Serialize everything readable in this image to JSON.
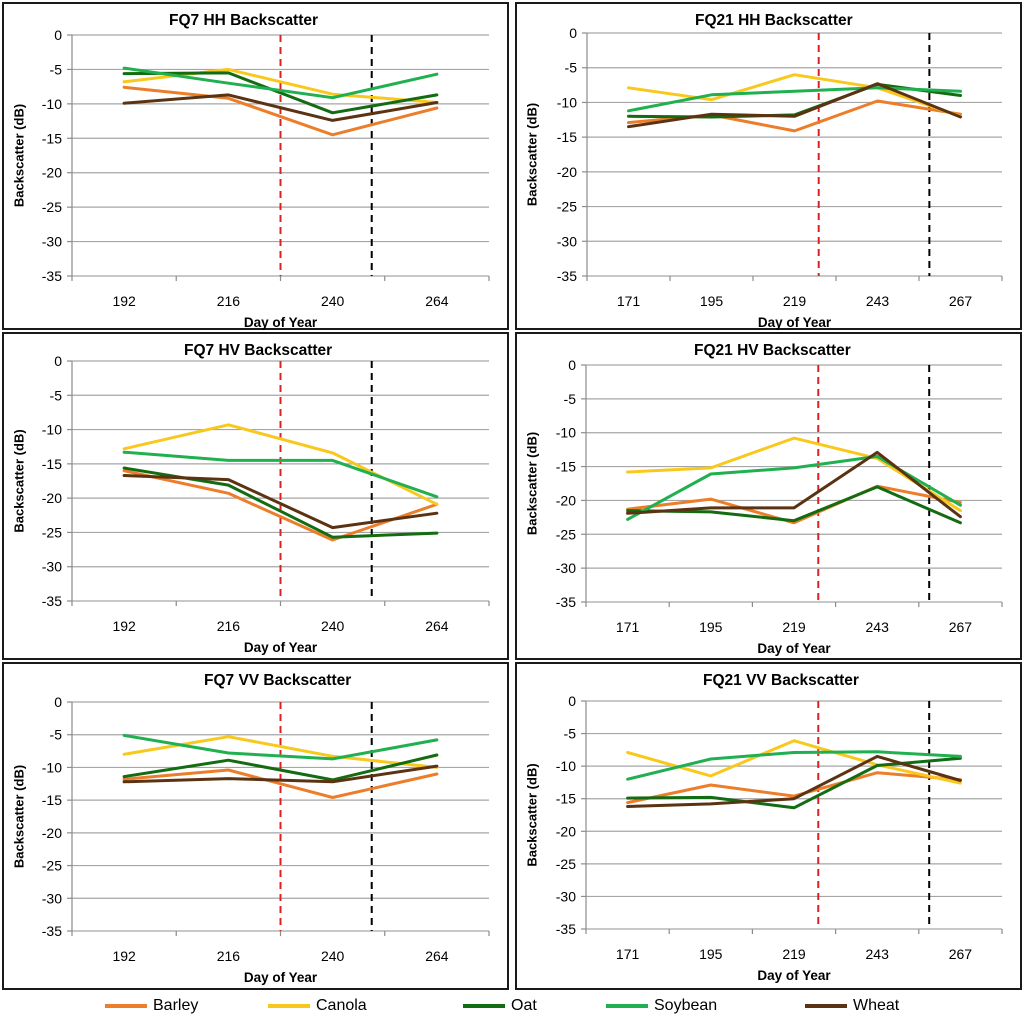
{
  "chart_data": [
    {
      "type": "line",
      "title": "FQ7 HH Backscatter",
      "xlabel": "Day of Year",
      "ylabel": "Backscatter (dB)",
      "x": [
        192,
        216,
        240,
        264
      ],
      "ylim": [
        -35,
        0
      ],
      "yticks": [
        0,
        -5,
        -10,
        -15,
        -20,
        -25,
        -30,
        -35
      ],
      "vlines": [
        {
          "x": 228,
          "color": "#e02020"
        },
        {
          "x": 249,
          "color": "#000000"
        }
      ],
      "series": [
        {
          "name": "Barley",
          "values": [
            -7.6,
            -9.2,
            -14.5,
            -10.6
          ]
        },
        {
          "name": "Canola",
          "values": [
            -6.8,
            -5.0,
            -8.6,
            -9.8
          ]
        },
        {
          "name": "Oat",
          "values": [
            -5.6,
            -5.5,
            -11.3,
            -8.7
          ]
        },
        {
          "name": "Soybean",
          "values": [
            -4.8,
            -7.0,
            -9.1,
            -5.7
          ]
        },
        {
          "name": "Wheat",
          "values": [
            -9.9,
            -8.7,
            -12.4,
            -9.8
          ]
        }
      ]
    },
    {
      "type": "line",
      "title": "FQ21 HH Backscatter",
      "xlabel": "Day of Year",
      "ylabel": "Backscatter (dB)",
      "x": [
        171,
        195,
        219,
        243,
        267
      ],
      "ylim": [
        -35,
        0
      ],
      "yticks": [
        0,
        -5,
        -10,
        -15,
        -20,
        -25,
        -30,
        -35
      ],
      "vlines": [
        {
          "x": 226,
          "color": "#e02020"
        },
        {
          "x": 258,
          "color": "#000000"
        }
      ],
      "series": [
        {
          "name": "Barley",
          "values": [
            -12.9,
            -11.8,
            -14.1,
            -9.8,
            -11.7
          ]
        },
        {
          "name": "Canola",
          "values": [
            -7.9,
            -9.6,
            -6.0,
            -7.9,
            -12.0
          ]
        },
        {
          "name": "Oat",
          "values": [
            -12.0,
            -12.1,
            -11.8,
            -7.4,
            -9.0
          ]
        },
        {
          "name": "Soybean",
          "values": [
            -11.2,
            -8.9,
            -8.4,
            -7.9,
            -8.4
          ]
        },
        {
          "name": "Wheat",
          "values": [
            -13.5,
            -11.7,
            -12.0,
            -7.3,
            -12.1
          ]
        }
      ]
    },
    {
      "type": "line",
      "title": "FQ7 HV Backscatter",
      "xlabel": "Day of Year",
      "ylabel": "Backscatter (dB)",
      "x": [
        192,
        216,
        240,
        264
      ],
      "ylim": [
        -35,
        0
      ],
      "yticks": [
        0,
        -5,
        -10,
        -15,
        -20,
        -25,
        -30,
        -35
      ],
      "vlines": [
        {
          "x": 228,
          "color": "#e02020"
        },
        {
          "x": 249,
          "color": "#000000"
        }
      ],
      "series": [
        {
          "name": "Barley",
          "values": [
            -16.0,
            -19.3,
            -26.1,
            -20.9
          ]
        },
        {
          "name": "Canola",
          "values": [
            -12.8,
            -9.3,
            -13.4,
            -20.9
          ]
        },
        {
          "name": "Oat",
          "values": [
            -15.6,
            -18.1,
            -25.7,
            -25.1
          ]
        },
        {
          "name": "Soybean",
          "values": [
            -13.3,
            -14.5,
            -14.5,
            -19.8
          ]
        },
        {
          "name": "Wheat",
          "values": [
            -16.7,
            -17.3,
            -24.3,
            -22.2
          ]
        }
      ]
    },
    {
      "type": "line",
      "title": "FQ21 HV Backscatter",
      "xlabel": "Day of Year",
      "ylabel": "Backscatter (dB)",
      "x": [
        171,
        195,
        219,
        243,
        267
      ],
      "ylim": [
        -35,
        0
      ],
      "yticks": [
        0,
        -5,
        -10,
        -15,
        -20,
        -25,
        -30,
        -35
      ],
      "vlines": [
        {
          "x": 226,
          "color": "#e02020"
        },
        {
          "x": 258,
          "color": "#000000"
        }
      ],
      "series": [
        {
          "name": "Barley",
          "values": [
            -21.3,
            -19.8,
            -23.3,
            -17.9,
            -20.3
          ]
        },
        {
          "name": "Canola",
          "values": [
            -15.8,
            -15.2,
            -10.8,
            -13.8,
            -21.5
          ]
        },
        {
          "name": "Oat",
          "values": [
            -21.5,
            -21.7,
            -23.0,
            -18.0,
            -23.3
          ]
        },
        {
          "name": "Soybean",
          "values": [
            -22.8,
            -16.1,
            -15.2,
            -13.5,
            -20.7
          ]
        },
        {
          "name": "Wheat",
          "values": [
            -21.9,
            -21.1,
            -21.1,
            -12.9,
            -22.4
          ]
        }
      ]
    },
    {
      "type": "line",
      "title": "FQ7 VV Backscatter",
      "xlabel": "Day of Year",
      "ylabel": "Backscatter (dB)",
      "x": [
        192,
        216,
        240,
        264
      ],
      "ylim": [
        -35,
        0
      ],
      "yticks": [
        0,
        -5,
        -10,
        -15,
        -20,
        -25,
        -30,
        -35
      ],
      "vlines": [
        {
          "x": 228,
          "color": "#e02020"
        },
        {
          "x": 249,
          "color": "#000000"
        }
      ],
      "series": [
        {
          "name": "Barley",
          "values": [
            -11.8,
            -10.4,
            -14.6,
            -11.0
          ]
        },
        {
          "name": "Canola",
          "values": [
            -8.0,
            -5.3,
            -8.3,
            -10.0
          ]
        },
        {
          "name": "Oat",
          "values": [
            -11.4,
            -8.9,
            -11.9,
            -8.1
          ]
        },
        {
          "name": "Soybean",
          "values": [
            -5.1,
            -7.8,
            -8.7,
            -5.8
          ]
        },
        {
          "name": "Wheat",
          "values": [
            -12.2,
            -11.7,
            -12.2,
            -9.8
          ]
        }
      ]
    },
    {
      "type": "line",
      "title": "FQ21 VV Backscatter",
      "xlabel": "Day of Year",
      "ylabel": "Backscatter (dB)",
      "x": [
        171,
        195,
        219,
        243,
        267
      ],
      "ylim": [
        -35,
        0
      ],
      "yticks": [
        0,
        -5,
        -10,
        -15,
        -20,
        -25,
        -30,
        -35
      ],
      "vlines": [
        {
          "x": 226,
          "color": "#e02020"
        },
        {
          "x": 258,
          "color": "#000000"
        }
      ],
      "series": [
        {
          "name": "Barley",
          "values": [
            -15.6,
            -12.9,
            -14.6,
            -11.0,
            -12.1
          ]
        },
        {
          "name": "Canola",
          "values": [
            -7.9,
            -11.5,
            -6.1,
            -9.8,
            -12.6
          ]
        },
        {
          "name": "Oat",
          "values": [
            -14.9,
            -14.8,
            -16.4,
            -9.9,
            -8.8
          ]
        },
        {
          "name": "Soybean",
          "values": [
            -12.0,
            -8.9,
            -7.9,
            -7.8,
            -8.5
          ]
        },
        {
          "name": "Wheat",
          "values": [
            -16.2,
            -15.8,
            -15.0,
            -8.5,
            -12.2
          ]
        }
      ]
    }
  ],
  "legend": [
    {
      "name": "Barley",
      "color": "#ec7d2a"
    },
    {
      "name": "Canola",
      "color": "#f8c81c"
    },
    {
      "name": "Oat",
      "color": "#136b12"
    },
    {
      "name": "Soybean",
      "color": "#20b050"
    },
    {
      "name": "Wheat",
      "color": "#5c3312"
    }
  ]
}
